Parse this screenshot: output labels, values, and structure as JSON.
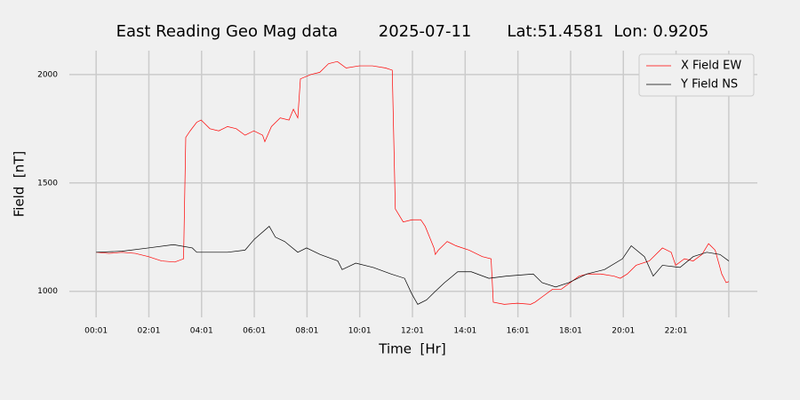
{
  "chart_data": {
    "type": "line",
    "title": "East Reading Geo Mag data        2025-07-11       Lat:51.4581  Lon: 0.9205",
    "x_label": "Time  [Hr]",
    "y_label": "Field  [nT]",
    "xlim": [
      -60,
      1506
    ],
    "ylim": [
      880,
      2110
    ],
    "xticks": [
      {
        "value": 1,
        "label": "00:01"
      },
      {
        "value": 121,
        "label": "02:01"
      },
      {
        "value": 241,
        "label": "04:01"
      },
      {
        "value": 361,
        "label": "06:01"
      },
      {
        "value": 481,
        "label": "08:01"
      },
      {
        "value": 601,
        "label": "10:01"
      },
      {
        "value": 721,
        "label": "12:01"
      },
      {
        "value": 841,
        "label": "14:01"
      },
      {
        "value": 961,
        "label": "16:01"
      },
      {
        "value": 1081,
        "label": "18:01"
      },
      {
        "value": 1201,
        "label": "20:01"
      },
      {
        "value": 1321,
        "label": "22:01"
      },
      {
        "value": 1441,
        "label": null
      }
    ],
    "yticks": [
      1000,
      1500,
      2000
    ],
    "grid": true,
    "legend": "upper right",
    "series": [
      {
        "name": "X Field EW",
        "color": "#ff0000",
        "x": [
          1,
          30,
          60,
          90,
          120,
          150,
          180,
          200,
          205,
          215,
          230,
          240,
          260,
          280,
          300,
          320,
          340,
          360,
          370,
          380,
          385,
          400,
          420,
          440,
          450,
          460,
          466,
          490,
          510,
          530,
          550,
          570,
          600,
          630,
          660,
          675,
          682,
          700,
          720,
          740,
          750,
          760,
          770,
          773,
          780,
          800,
          820,
          850,
          880,
          900,
          905,
          930,
          960,
          990,
          1000,
          1020,
          1040,
          1060,
          1080,
          1100,
          1120,
          1150,
          1180,
          1194,
          1210,
          1230,
          1260,
          1290,
          1310,
          1320,
          1340,
          1360,
          1380,
          1395,
          1410,
          1425,
          1435,
          1441
        ],
        "values": [
          1180,
          1175,
          1180,
          1175,
          1160,
          1140,
          1135,
          1150,
          1710,
          1740,
          1780,
          1790,
          1750,
          1740,
          1760,
          1750,
          1720,
          1740,
          1730,
          1720,
          1690,
          1760,
          1800,
          1790,
          1840,
          1800,
          1980,
          2000,
          2010,
          2050,
          2060,
          2030,
          2040,
          2040,
          2030,
          2020,
          1380,
          1320,
          1330,
          1330,
          1300,
          1250,
          1200,
          1170,
          1190,
          1230,
          1210,
          1190,
          1160,
          1150,
          950,
          940,
          945,
          940,
          950,
          980,
          1010,
          1010,
          1040,
          1070,
          1080,
          1080,
          1070,
          1060,
          1080,
          1120,
          1140,
          1200,
          1180,
          1120,
          1150,
          1140,
          1170,
          1220,
          1190,
          1080,
          1040,
          1045
        ]
      },
      {
        "name": "Y Field NS",
        "color": "#000000",
        "x": [
          1,
          60,
          120,
          177,
          220,
          230,
          260,
          300,
          340,
          361,
          395,
          409,
          430,
          460,
          480,
          511,
          551,
          561,
          592,
          632,
          672,
          703,
          719,
          733,
          753,
          773,
          794,
          824,
          855,
          895,
          935,
          996,
          1016,
          1047,
          1077,
          1118,
          1158,
          1199,
          1219,
          1249,
          1269,
          1290,
          1330,
          1360,
          1391,
          1421,
          1441
        ],
        "values": [
          1180,
          1185,
          1200,
          1215,
          1200,
          1180,
          1180,
          1180,
          1190,
          1240,
          1300,
          1250,
          1230,
          1180,
          1200,
          1170,
          1140,
          1100,
          1130,
          1110,
          1080,
          1060,
          990,
          940,
          960,
          1000,
          1040,
          1090,
          1090,
          1060,
          1070,
          1080,
          1040,
          1020,
          1040,
          1080,
          1100,
          1150,
          1210,
          1160,
          1070,
          1120,
          1110,
          1160,
          1180,
          1170,
          1140
        ]
      }
    ]
  }
}
